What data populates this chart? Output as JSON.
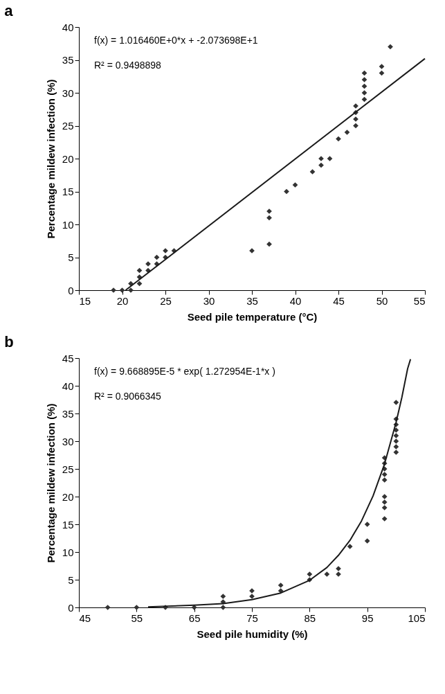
{
  "chart_data": [
    {
      "type": "scatter",
      "title": "a",
      "xlabel": "Seed pile temperature (°C)",
      "ylabel": "Percentage mildew infection (%)",
      "annotations": [
        "f(x) = 1.016460E+0*x + -2.073698E+1",
        "R² = 0.9498898"
      ],
      "xlim": [
        15,
        55
      ],
      "ylim": [
        0,
        40
      ],
      "xticks": [
        15,
        20,
        25,
        30,
        35,
        40,
        45,
        50,
        55
      ],
      "yticks": [
        0,
        5,
        10,
        15,
        20,
        25,
        30,
        35,
        40
      ],
      "grid": false,
      "series": [
        {
          "marker": "diamond",
          "color": "#333333",
          "x": [
            19,
            20,
            21,
            21,
            22,
            22,
            22,
            23,
            23,
            24,
            24,
            25,
            25,
            26,
            35,
            37,
            37,
            37,
            39,
            40,
            42,
            43,
            43,
            44,
            45,
            46,
            47,
            47,
            47,
            47,
            48,
            48,
            48,
            48,
            48,
            50,
            50,
            51
          ],
          "values": [
            0,
            0,
            0,
            1,
            1,
            2,
            3,
            3,
            4,
            4,
            5,
            5,
            6,
            6,
            6,
            7,
            11,
            12,
            15,
            16,
            18,
            19,
            20,
            20,
            23,
            24,
            25,
            26,
            27,
            28,
            29,
            30,
            31,
            32,
            33,
            33,
            34,
            37
          ]
        },
        {
          "type": "line",
          "marker": "none",
          "color": "#1a1a1a",
          "x": [
            20.4,
            55
          ],
          "values": [
            0,
            35.2
          ]
        }
      ]
    },
    {
      "type": "scatter",
      "title": "b",
      "xlabel": "Seed pile humidity (%)",
      "ylabel": "Percentage mildew infection (%)",
      "annotations": [
        "f(x) = 9.668895E-5 * exp( 1.272954E-1*x )",
        "R² = 0.9066345"
      ],
      "xlim": [
        45,
        105
      ],
      "ylim": [
        0,
        45
      ],
      "xticks": [
        45,
        55,
        65,
        75,
        85,
        95,
        105
      ],
      "yticks": [
        0,
        5,
        10,
        15,
        20,
        25,
        30,
        35,
        40,
        45
      ],
      "grid": false,
      "series": [
        {
          "marker": "diamond",
          "color": "#333333",
          "x": [
            50,
            55,
            60,
            65,
            70,
            70,
            70,
            75,
            75,
            80,
            80,
            85,
            85,
            88,
            90,
            90,
            92,
            95,
            95,
            98,
            98,
            98,
            98,
            98,
            98,
            98,
            98,
            98,
            100,
            100,
            100,
            100,
            100,
            100,
            100,
            100
          ],
          "values": [
            0,
            0,
            0,
            0,
            0,
            1,
            2,
            2,
            3,
            3,
            4,
            5,
            6,
            6,
            6,
            7,
            11,
            12,
            15,
            16,
            18,
            19,
            20,
            23,
            24,
            25,
            26,
            27,
            28,
            29,
            30,
            31,
            32,
            33,
            34,
            37
          ]
        },
        {
          "type": "line",
          "marker": "none",
          "color": "#1a1a1a",
          "x": [
            57,
            65,
            70,
            75,
            80,
            85,
            88,
            90,
            92,
            94,
            96,
            98,
            100,
            101,
            102,
            102.5
          ],
          "values": [
            0.1,
            0.4,
            0.7,
            1.4,
            2.6,
            4.9,
            7.2,
            9.4,
            12.1,
            15.6,
            20.1,
            25.9,
            33.4,
            37.9,
            43.1,
            44.8
          ]
        }
      ]
    }
  ]
}
